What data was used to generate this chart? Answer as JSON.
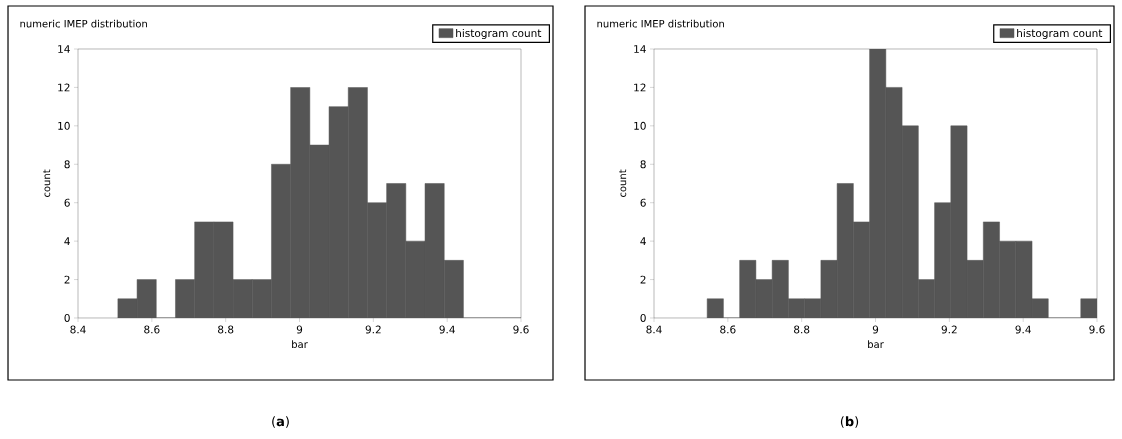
{
  "chart_data": [
    {
      "type": "histogram",
      "title": "numeric IMEP distribution",
      "xlabel": "bar",
      "ylabel": "count",
      "bins": [
        8.508,
        8.56,
        8.612,
        8.664,
        8.716,
        8.768,
        8.82,
        8.872,
        8.924,
        8.976,
        9.028,
        9.08,
        9.132,
        9.184,
        9.236,
        9.288,
        9.34,
        9.392,
        9.444,
        9.496,
        9.548,
        9.6
      ],
      "series": [
        {
          "name": "histogram count",
          "color": "#555555",
          "values": [
            1,
            2,
            0,
            2,
            5,
            5,
            2,
            2,
            8,
            12,
            9,
            11,
            12,
            6,
            7,
            4,
            7,
            3,
            0,
            0,
            0
          ]
        }
      ],
      "xlim": [
        8.4,
        9.6
      ],
      "xticks": [
        8.4,
        8.6,
        8.8,
        9,
        9.2,
        9.4,
        9.6
      ],
      "ylim": [
        0,
        14
      ],
      "yticks": [
        0,
        2,
        4,
        6,
        8,
        10,
        12,
        14
      ],
      "grid": false,
      "legend": "top right",
      "annotations": [
        "(**a**)"
      ]
    },
    {
      "type": "histogram",
      "title": "numeric IMEP distribution",
      "xlabel": "bar",
      "ylabel": "count",
      "bins": [
        8.544,
        8.588,
        8.632,
        8.676,
        8.72,
        8.764,
        8.808,
        8.852,
        8.896,
        8.94,
        8.984,
        9.028,
        9.072,
        9.116,
        9.16,
        9.204,
        9.248,
        9.292,
        9.336,
        9.38,
        9.424,
        9.468,
        9.512,
        9.556,
        9.6
      ],
      "series": [
        {
          "name": "histogram count",
          "color": "#555555",
          "values": [
            1,
            0,
            3,
            2,
            3,
            1,
            1,
            3,
            7,
            5,
            14,
            12,
            10,
            2,
            6,
            10,
            3,
            5,
            4,
            4,
            1,
            0,
            0,
            1
          ]
        }
      ],
      "xlim": [
        8.4,
        9.6
      ],
      "xticks": [
        8.4,
        8.6,
        8.8,
        9,
        9.2,
        9.4,
        9.6
      ],
      "ylim": [
        0,
        14
      ],
      "yticks": [
        0,
        2,
        4,
        6,
        8,
        10,
        12,
        14
      ],
      "grid": false,
      "legend": "top right",
      "annotations": [
        "(**b**)"
      ]
    }
  ]
}
